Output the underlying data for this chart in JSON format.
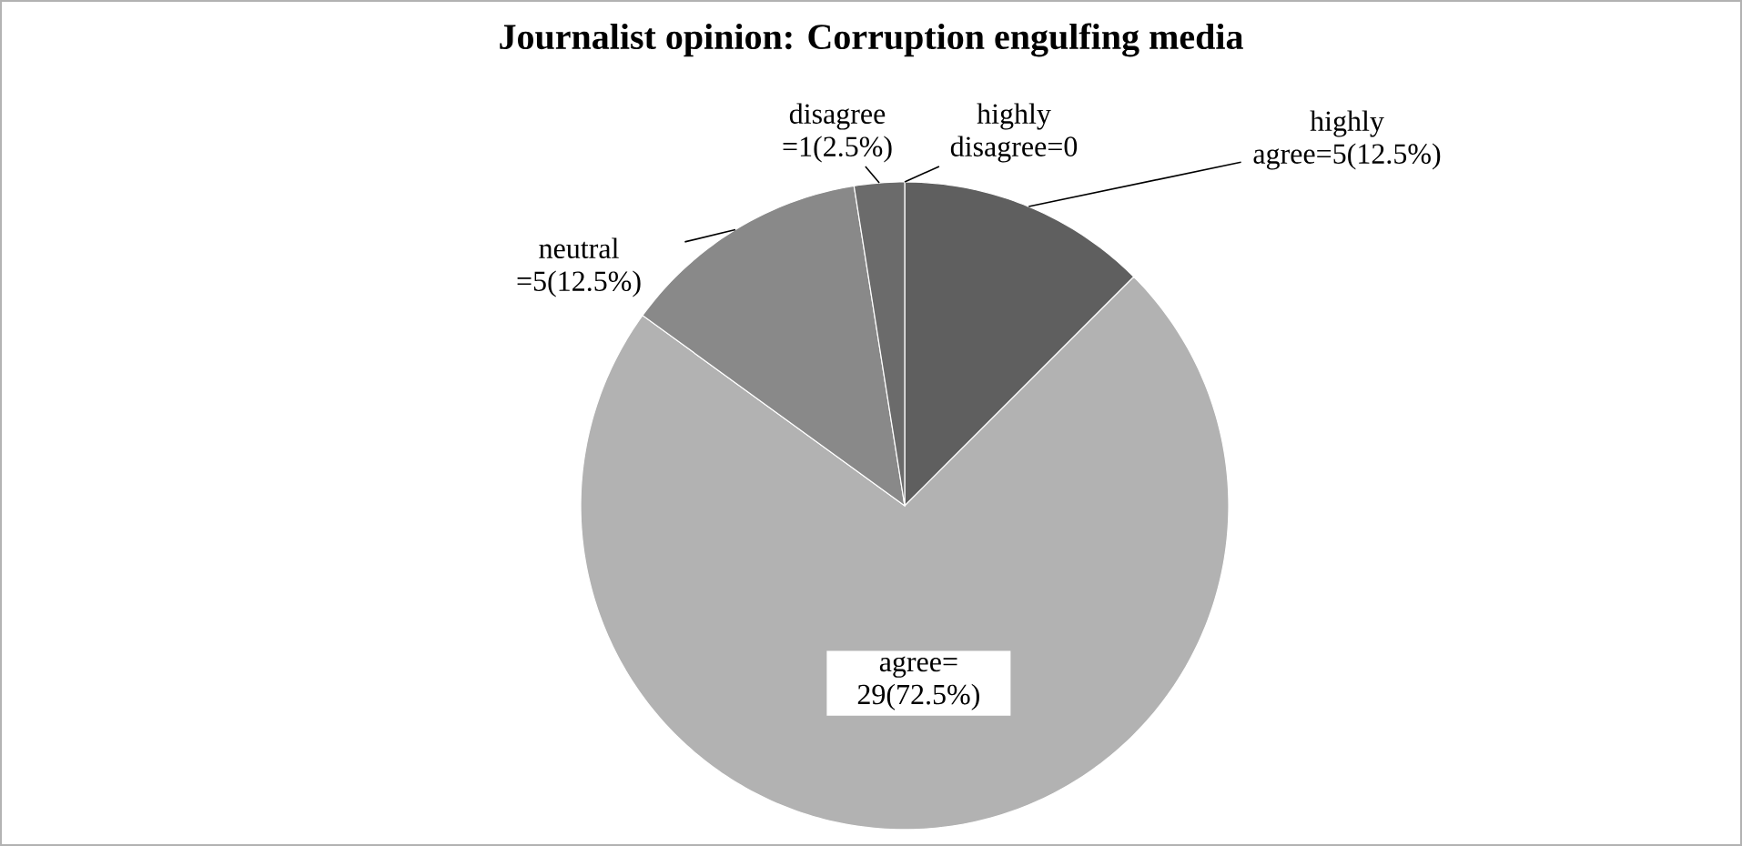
{
  "chart_data": {
    "type": "pie",
    "title": "Journalist opinion: Corruption engulfing media",
    "categories": [
      "highly agree=5(12.5%)",
      "agree= 29(72.5%)",
      "neutral =5(12.5%)",
      "disagree =1(2.5%)",
      "highly disagree=0"
    ],
    "values": [
      5,
      29,
      5,
      1,
      0
    ],
    "colors": [
      "#5f5f5f",
      "#b2b2b2",
      "#898989",
      "#6b6b6b",
      "#4a4a4a"
    ]
  }
}
